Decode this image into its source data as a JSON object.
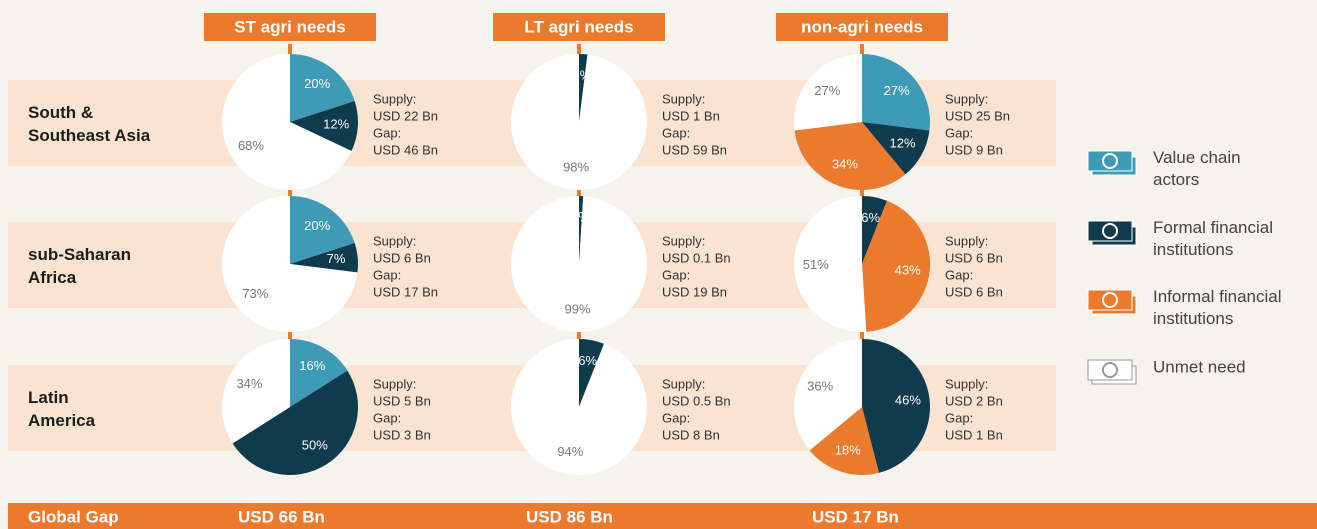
{
  "columns": [
    "ST agri needs",
    "LT agri needs",
    "non-agri needs"
  ],
  "supply_label": "Supply:",
  "gap_label": "Gap:",
  "legend": [
    {
      "name": "Value chain actors",
      "color": "#3d9bb8"
    },
    {
      "name": "Formal financial institutions",
      "color": "#0f3b4c"
    },
    {
      "name": "Informal financial institutions",
      "color": "#ec7a2d"
    },
    {
      "name": "Unmet need",
      "color": "#ffffff"
    }
  ],
  "rows": [
    {
      "name": "South & Southeast Asia",
      "cells": [
        {
          "values": [
            20,
            12,
            0,
            68
          ],
          "value_labels": [
            "20%",
            "12%",
            null,
            "68%"
          ],
          "supply": "USD 22 Bn",
          "gap": "USD 46 Bn"
        },
        {
          "values": [
            0,
            2,
            0,
            98
          ],
          "value_labels": [
            null,
            "2%",
            null,
            "98%"
          ],
          "supply": "USD 1 Bn",
          "gap": "USD 59 Bn"
        },
        {
          "values": [
            27,
            12,
            34,
            27
          ],
          "value_labels": [
            "27%",
            "12%",
            "34%",
            "27%"
          ],
          "supply": "USD 25 Bn",
          "gap": "USD 9 Bn"
        }
      ]
    },
    {
      "name": "sub-Saharan Africa",
      "cells": [
        {
          "values": [
            20,
            7,
            0,
            73
          ],
          "value_labels": [
            "20%",
            "7%",
            null,
            "73%"
          ],
          "supply": "USD 6 Bn",
          "gap": "USD 17 Bn"
        },
        {
          "values": [
            0,
            1,
            0,
            99
          ],
          "value_labels": [
            null,
            "1%",
            null,
            "99%"
          ],
          "supply": "USD 0.1 Bn",
          "gap": "USD 19 Bn"
        },
        {
          "values": [
            0,
            6,
            43,
            51
          ],
          "value_labels": [
            null,
            "6%",
            "43%",
            "51%"
          ],
          "supply": "USD 6 Bn",
          "gap": "USD 6 Bn"
        }
      ]
    },
    {
      "name": "Latin America",
      "cells": [
        {
          "values": [
            16,
            50,
            0,
            34
          ],
          "value_labels": [
            "16%",
            "50%",
            null,
            "34%"
          ],
          "supply": "USD 5 Bn",
          "gap": "USD 3 Bn"
        },
        {
          "values": [
            0,
            6,
            0,
            94
          ],
          "value_labels": [
            null,
            "6%",
            null,
            "94%"
          ],
          "supply": "USD 0.5 Bn",
          "gap": "USD 8 Bn"
        },
        {
          "values": [
            0,
            46,
            18,
            36
          ],
          "value_labels": [
            null,
            "46%",
            "18%",
            "36%"
          ],
          "supply": "USD 2 Bn",
          "gap": "USD 1 Bn"
        }
      ]
    }
  ],
  "global_gap": {
    "label": "Global Gap",
    "values": [
      "USD 66 Bn",
      "USD 86 Bn",
      "USD 17 Bn"
    ]
  }
}
